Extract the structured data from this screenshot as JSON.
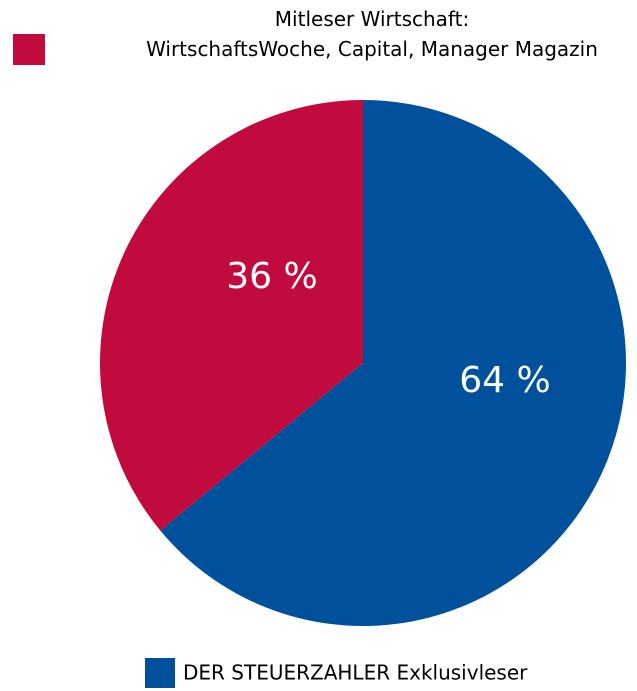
{
  "chart_data": {
    "type": "pie",
    "categories": [
      "DER STEUERZAHLER Exklusivleser",
      "Mitleser Wirtschaft:\nWirtschaftsWoche, Capital, Manager Magazin"
    ],
    "values": [
      64,
      36
    ],
    "value_labels": [
      "64 %",
      "36 %"
    ],
    "colors": [
      "#00509b",
      "#c10a3e"
    ]
  }
}
